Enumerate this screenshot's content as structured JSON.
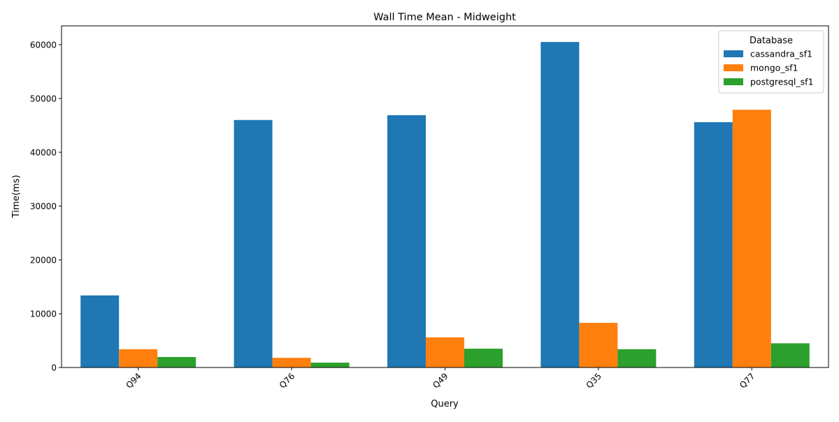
{
  "chart_data": {
    "type": "bar",
    "title": "Wall Time Mean - Midweight",
    "xlabel": "Query",
    "ylabel": "Time(ms)",
    "categories": [
      "Q94",
      "Q76",
      "Q49",
      "Q35",
      "Q77"
    ],
    "ylim": [
      0,
      63500
    ],
    "yticks": [
      0,
      10000,
      20000,
      30000,
      40000,
      50000,
      60000
    ],
    "grid": false,
    "legend": {
      "title": "Database",
      "placement": "top-right"
    },
    "series": [
      {
        "name": "cassandra_sf1",
        "color": "#1f77b4",
        "values": [
          13400,
          46000,
          46900,
          60500,
          45600
        ]
      },
      {
        "name": "mongo_sf1",
        "color": "#ff7f0e",
        "values": [
          3400,
          1800,
          5600,
          8300,
          47900
        ]
      },
      {
        "name": "postgresql_sf1",
        "color": "#2ca02c",
        "values": [
          1950,
          900,
          3500,
          3400,
          4500
        ]
      }
    ]
  }
}
